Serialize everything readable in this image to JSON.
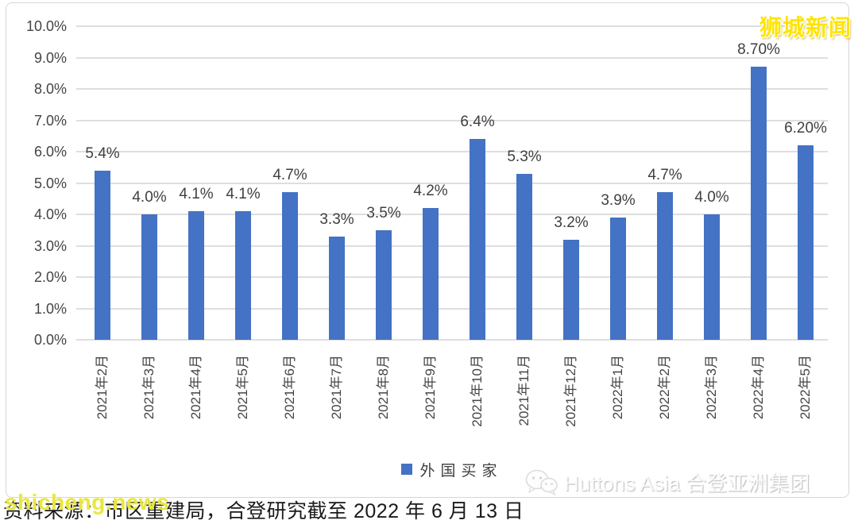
{
  "watermarks": {
    "site_logo": "狮城新闻",
    "site_url": "shicheng.news",
    "brand": "Huttons Asia 合登亚洲集团"
  },
  "source_note": "资料来源：市区重建局，合登研究截至 2022 年 6 月 13 日",
  "chart_data": {
    "type": "bar",
    "title": "",
    "xlabel": "",
    "ylabel": "",
    "categories": [
      "2021年2月",
      "2021年3月",
      "2021年4月",
      "2021年5月",
      "2021年6月",
      "2021年7月",
      "2021年8月",
      "2021年9月",
      "2021年10月",
      "2021年11月",
      "2021年12月",
      "2022年1月",
      "2022年2月",
      "2022年3月",
      "2022年4月",
      "2022年5月"
    ],
    "series": [
      {
        "name": "外国买家",
        "values": [
          5.4,
          4.0,
          4.1,
          4.1,
          4.7,
          3.3,
          3.5,
          4.2,
          6.4,
          5.3,
          3.2,
          3.9,
          4.7,
          4.0,
          8.7,
          6.2
        ],
        "labels": [
          "5.4%",
          "4.0%",
          "4.1%",
          "4.1%",
          "4.7%",
          "3.3%",
          "3.5%",
          "4.2%",
          "6.4%",
          "5.3%",
          "3.2%",
          "3.9%",
          "4.7%",
          "4.0%",
          "8.70%",
          "6.20%"
        ]
      }
    ],
    "legend_label": "外国买家",
    "legend_position": "bottom",
    "grid": true,
    "ylim": [
      0,
      10
    ],
    "ytick_step": 1.0,
    "ytick_labels": [
      "0.0%",
      "1.0%",
      "2.0%",
      "3.0%",
      "4.0%",
      "5.0%",
      "6.0%",
      "7.0%",
      "8.0%",
      "9.0%",
      "10.0%"
    ],
    "bar_color": "#4472C4"
  }
}
